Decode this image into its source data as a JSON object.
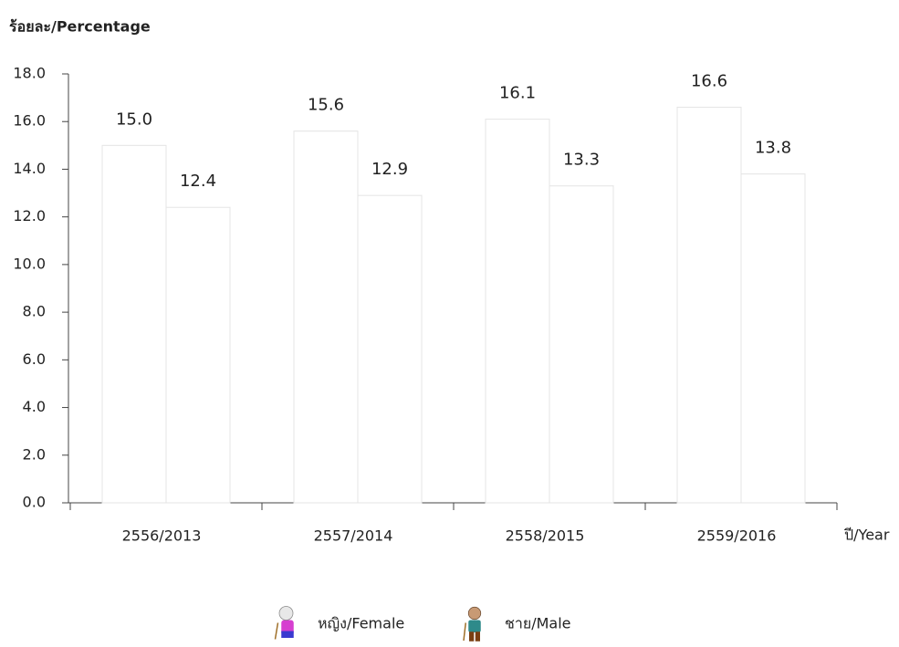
{
  "chart_data": {
    "type": "bar",
    "y_axis_title": "ร้อยละ/Percentage",
    "x_axis_title": "ปี/Year",
    "categories": [
      "2556/2013",
      "2557/2014",
      "2558/2015",
      "2559/2016"
    ],
    "series": [
      {
        "name": "หญิง/Female",
        "values": [
          15.0,
          15.6,
          16.1,
          16.6
        ],
        "value_labels": [
          "15.0",
          "15.6",
          "16.1",
          "16.6"
        ]
      },
      {
        "name": "ชาย/Male",
        "values": [
          12.4,
          12.9,
          13.3,
          13.8
        ],
        "value_labels": [
          "12.4",
          "12.9",
          "13.3",
          "13.8"
        ]
      }
    ],
    "ylim": [
      0,
      18
    ],
    "yticks": [
      {
        "value": 0,
        "label": "0.0"
      },
      {
        "value": 2,
        "label": "2.0"
      },
      {
        "value": 4,
        "label": "4.0"
      },
      {
        "value": 6,
        "label": "6.0"
      },
      {
        "value": 8,
        "label": "8.0"
      },
      {
        "value": 10,
        "label": "10.0"
      },
      {
        "value": 12,
        "label": "12.0"
      },
      {
        "value": 14,
        "label": "14.0"
      },
      {
        "value": 16,
        "label": "16.0"
      },
      {
        "value": 18,
        "label": "18.0"
      }
    ]
  }
}
